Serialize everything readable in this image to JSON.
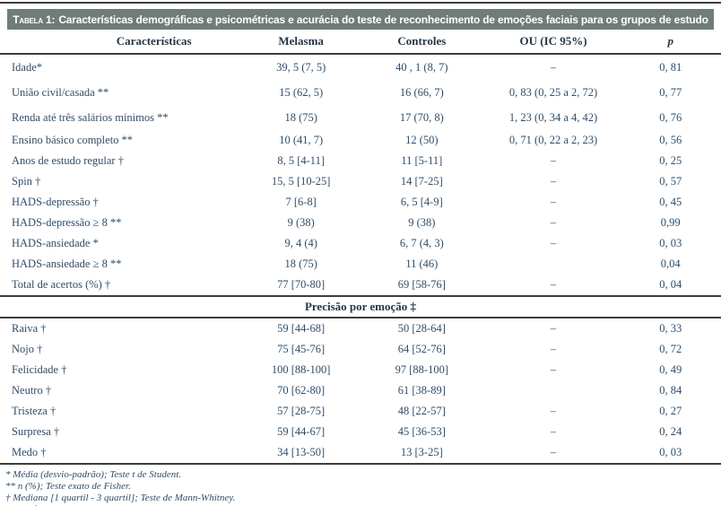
{
  "title": {
    "prefix": "Tabela 1:",
    "rest": "Características demográficas e psicométricas e acurácia do teste de reconhecimento de emoções faciais para os grupos de estudo"
  },
  "table": {
    "columns": [
      "Características",
      "Melasma",
      "Controles",
      "OU (IC 95%)",
      "p"
    ],
    "sections": [
      {
        "rows": [
          [
            "Idade*",
            "39, 5 (7, 5)",
            "40 , 1 (8, 7)",
            "–",
            "0, 81"
          ],
          [
            "União civil/casada **",
            "15 (62, 5)",
            "16 (66, 7)",
            "0, 83 (0, 25 a 2, 72)",
            "0, 77"
          ],
          [
            "Renda até três salários mínimos **",
            "18 (75)",
            "17 (70, 8)",
            "1, 23 (0, 34 a 4, 42)",
            "0, 76"
          ],
          [
            "Ensino básico completo **",
            "10 (41, 7)",
            "12 (50)",
            "0, 71 (0, 22 a 2, 23)",
            "0, 56"
          ],
          [
            "Anos de estudo regular †",
            "8, 5 [4-11]",
            "11 [5-11]",
            "–",
            "0, 25"
          ],
          [
            "Spin †",
            "15, 5 [10-25]",
            "14 [7-25]",
            "–",
            "0, 57"
          ],
          [
            "HADS-depressão †",
            "7 [6-8]",
            "6, 5 [4-9]",
            "–",
            "0, 45"
          ],
          [
            "HADS-depressão ≥ 8 **",
            "9 (38)",
            "9 (38)",
            "–",
            "0,99"
          ],
          [
            "HADS-ansiedade *",
            "9, 4 (4)",
            "6, 7 (4, 3)",
            "–",
            "0, 03"
          ],
          [
            "HADS-ansiedade ≥ 8 **",
            "18 (75)",
            "11 (46)",
            "",
            "0,04"
          ],
          [
            "Total de acertos (%) †",
            "77 [70-80]",
            "69 [58-76]",
            "–",
            "0, 04"
          ]
        ]
      },
      {
        "header": "Precisão por emoção ‡",
        "rows": [
          [
            "Raiva †",
            "59 [44-68]",
            "50 [28-64]",
            "–",
            "0, 33"
          ],
          [
            "Nojo †",
            "75 [45-76]",
            "64 [52-76]",
            "–",
            "0, 72"
          ],
          [
            "Felicidade †",
            "100 [88-100]",
            "97 [88-100]",
            "–",
            "0, 49"
          ],
          [
            "Neutro †",
            "70 [62-80]",
            "61 [38-89]",
            "",
            "0, 84"
          ],
          [
            "Tristeza †",
            "57 [28-75]",
            "48 [22-57]",
            "–",
            "0, 27"
          ],
          [
            "Surpresa †",
            "59 [44-67]",
            "45 [36-53]",
            "–",
            "0, 24"
          ],
          [
            "Medo †",
            "34 [13-50]",
            "13 [3-25]",
            "–",
            "0, 03"
          ]
        ]
      }
    ]
  },
  "footnotes": [
    "* Média (desvio-padrão); Teste t de Student.",
    "** n (%); Teste exato de Fisher.",
    "† Mediana [1 quartil - 3 quartil]; Teste de Mann-Whitney.",
    "‡ Significância corrigida pelo método sequencial Sidak; pontuações não enviesadas: 100 * acertos 2 / (8 * uso total da opção)."
  ],
  "colors": {
    "title_bar": "#6f7d76",
    "rule": "#3b3e3b",
    "header_text": "#253646",
    "body_text": "#2f4d6a"
  }
}
